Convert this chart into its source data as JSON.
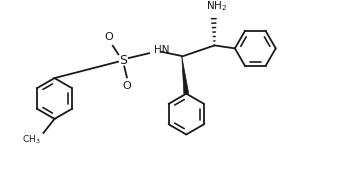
{
  "bg_color": "#ffffff",
  "line_color": "#1a1a1a",
  "line_width": 1.3,
  "figsize": [
    3.54,
    1.94
  ],
  "dpi": 100,
  "xlim": [
    0,
    9.5
  ],
  "ylim": [
    0,
    5.0
  ]
}
